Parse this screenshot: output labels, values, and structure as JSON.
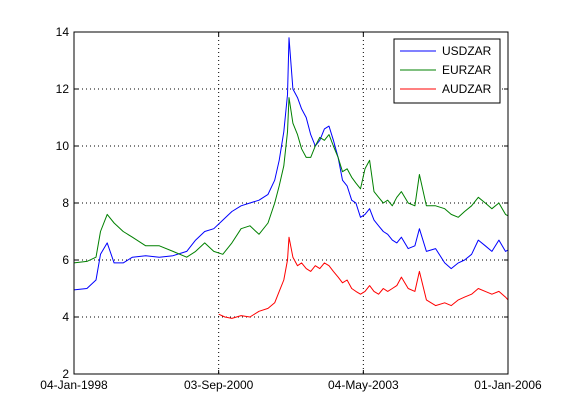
{
  "chart_data": {
    "type": "line",
    "title": "",
    "xlabel": "",
    "ylabel": "",
    "grid": true,
    "legend_position": "top-right",
    "xlim": [
      "1998-01-04",
      "2006-01-01"
    ],
    "ylim": [
      2,
      14
    ],
    "x_ticks": [
      "04-Jan-1998",
      "03-Sep-2000",
      "04-May-2003",
      "01-Jan-2006"
    ],
    "y_ticks": [
      "2",
      "4",
      "6",
      "8",
      "10",
      "12",
      "14"
    ],
    "series": [
      {
        "name": "USDZAR",
        "color": "#0000ff",
        "points": [
          [
            "1998-01-04",
            4.95
          ],
          [
            "1998-04-01",
            5.0
          ],
          [
            "1998-06-01",
            5.3
          ],
          [
            "1998-07-01",
            6.2
          ],
          [
            "1998-08-15",
            6.6
          ],
          [
            "1998-10-01",
            5.9
          ],
          [
            "1998-12-01",
            5.9
          ],
          [
            "1999-02-01",
            6.1
          ],
          [
            "1999-05-01",
            6.15
          ],
          [
            "1999-08-01",
            6.1
          ],
          [
            "1999-11-01",
            6.15
          ],
          [
            "2000-02-01",
            6.3
          ],
          [
            "2000-04-01",
            6.7
          ],
          [
            "2000-06-01",
            7.0
          ],
          [
            "2000-08-01",
            7.1
          ],
          [
            "2000-10-01",
            7.4
          ],
          [
            "2000-12-01",
            7.7
          ],
          [
            "2001-02-01",
            7.9
          ],
          [
            "2001-04-01",
            8.0
          ],
          [
            "2001-06-01",
            8.1
          ],
          [
            "2001-08-01",
            8.3
          ],
          [
            "2001-09-15",
            8.8
          ],
          [
            "2001-10-15",
            9.5
          ],
          [
            "2001-11-15",
            10.5
          ],
          [
            "2001-12-10",
            11.8
          ],
          [
            "2001-12-20",
            13.8
          ],
          [
            "2002-01-15",
            12.0
          ],
          [
            "2002-02-15",
            11.7
          ],
          [
            "2002-03-15",
            11.3
          ],
          [
            "2002-04-15",
            11.0
          ],
          [
            "2002-05-15",
            10.4
          ],
          [
            "2002-06-15",
            10.0
          ],
          [
            "2002-07-15",
            10.2
          ],
          [
            "2002-08-15",
            10.6
          ],
          [
            "2002-09-15",
            10.7
          ],
          [
            "2002-10-15",
            10.2
          ],
          [
            "2002-11-15",
            9.6
          ],
          [
            "2002-12-15",
            8.8
          ],
          [
            "2003-01-15",
            8.6
          ],
          [
            "2003-02-15",
            8.1
          ],
          [
            "2003-03-15",
            8.0
          ],
          [
            "2003-04-15",
            7.5
          ],
          [
            "2003-05-15",
            7.6
          ],
          [
            "2003-06-15",
            7.8
          ],
          [
            "2003-07-15",
            7.4
          ],
          [
            "2003-08-15",
            7.2
          ],
          [
            "2003-09-15",
            7.0
          ],
          [
            "2003-10-15",
            6.9
          ],
          [
            "2003-11-15",
            6.7
          ],
          [
            "2003-12-15",
            6.6
          ],
          [
            "2004-01-15",
            6.8
          ],
          [
            "2004-03-01",
            6.4
          ],
          [
            "2004-04-15",
            6.5
          ],
          [
            "2004-05-15",
            7.1
          ],
          [
            "2004-07-01",
            6.3
          ],
          [
            "2004-09-01",
            6.4
          ],
          [
            "2004-11-01",
            5.9
          ],
          [
            "2004-12-15",
            5.7
          ],
          [
            "2005-02-01",
            5.9
          ],
          [
            "2005-03-15",
            6.0
          ],
          [
            "2005-05-01",
            6.2
          ],
          [
            "2005-06-15",
            6.7
          ],
          [
            "2005-08-01",
            6.5
          ],
          [
            "2005-09-15",
            6.3
          ],
          [
            "2005-11-01",
            6.7
          ],
          [
            "2005-12-15",
            6.3
          ],
          [
            "2006-01-01",
            6.35
          ]
        ]
      },
      {
        "name": "EURZAR",
        "color": "#008000",
        "points": [
          [
            "1998-01-04",
            5.9
          ],
          [
            "1998-04-01",
            5.95
          ],
          [
            "1998-06-01",
            6.1
          ],
          [
            "1998-07-01",
            7.0
          ],
          [
            "1998-08-15",
            7.6
          ],
          [
            "1998-10-01",
            7.3
          ],
          [
            "1998-12-01",
            7.0
          ],
          [
            "1999-02-01",
            6.8
          ],
          [
            "1999-05-01",
            6.5
          ],
          [
            "1999-08-01",
            6.5
          ],
          [
            "1999-11-01",
            6.3
          ],
          [
            "2000-02-01",
            6.1
          ],
          [
            "2000-04-01",
            6.3
          ],
          [
            "2000-06-01",
            6.6
          ],
          [
            "2000-08-01",
            6.3
          ],
          [
            "2000-10-01",
            6.2
          ],
          [
            "2000-12-01",
            6.6
          ],
          [
            "2001-02-01",
            7.1
          ],
          [
            "2001-04-01",
            7.2
          ],
          [
            "2001-06-01",
            6.9
          ],
          [
            "2001-08-01",
            7.3
          ],
          [
            "2001-09-15",
            8.0
          ],
          [
            "2001-10-15",
            8.6
          ],
          [
            "2001-11-15",
            9.3
          ],
          [
            "2001-12-10",
            10.5
          ],
          [
            "2001-12-20",
            11.7
          ],
          [
            "2002-01-15",
            10.8
          ],
          [
            "2002-02-15",
            10.4
          ],
          [
            "2002-03-15",
            9.9
          ],
          [
            "2002-04-15",
            9.6
          ],
          [
            "2002-05-15",
            9.6
          ],
          [
            "2002-06-15",
            10.0
          ],
          [
            "2002-07-15",
            10.3
          ],
          [
            "2002-08-15",
            10.2
          ],
          [
            "2002-09-15",
            10.4
          ],
          [
            "2002-10-15",
            10.0
          ],
          [
            "2002-11-15",
            9.6
          ],
          [
            "2002-12-15",
            9.1
          ],
          [
            "2003-01-15",
            9.2
          ],
          [
            "2003-02-15",
            8.9
          ],
          [
            "2003-03-15",
            8.7
          ],
          [
            "2003-04-15",
            8.5
          ],
          [
            "2003-05-15",
            9.2
          ],
          [
            "2003-06-15",
            9.5
          ],
          [
            "2003-07-15",
            8.4
          ],
          [
            "2003-08-15",
            8.2
          ],
          [
            "2003-09-15",
            8.0
          ],
          [
            "2003-10-15",
            8.1
          ],
          [
            "2003-11-15",
            7.9
          ],
          [
            "2003-12-15",
            8.2
          ],
          [
            "2004-01-15",
            8.4
          ],
          [
            "2004-03-01",
            8.0
          ],
          [
            "2004-04-15",
            7.9
          ],
          [
            "2004-05-15",
            9.0
          ],
          [
            "2004-07-01",
            7.9
          ],
          [
            "2004-09-01",
            7.9
          ],
          [
            "2004-11-01",
            7.8
          ],
          [
            "2004-12-15",
            7.6
          ],
          [
            "2005-02-01",
            7.5
          ],
          [
            "2005-03-15",
            7.7
          ],
          [
            "2005-05-01",
            7.9
          ],
          [
            "2005-06-15",
            8.2
          ],
          [
            "2005-08-01",
            8.0
          ],
          [
            "2005-09-15",
            7.8
          ],
          [
            "2005-11-01",
            8.0
          ],
          [
            "2005-12-15",
            7.6
          ],
          [
            "2006-01-01",
            7.55
          ]
        ]
      },
      {
        "name": "AUDZAR",
        "color": "#ff0000",
        "points": [
          [
            "2000-09-03",
            4.1
          ],
          [
            "2000-10-15",
            4.0
          ],
          [
            "2000-12-01",
            3.95
          ],
          [
            "2001-02-01",
            4.05
          ],
          [
            "2001-04-01",
            4.0
          ],
          [
            "2001-06-01",
            4.2
          ],
          [
            "2001-08-01",
            4.3
          ],
          [
            "2001-09-15",
            4.5
          ],
          [
            "2001-10-15",
            4.9
          ],
          [
            "2001-11-15",
            5.3
          ],
          [
            "2001-12-10",
            6.0
          ],
          [
            "2001-12-20",
            6.8
          ],
          [
            "2002-01-15",
            6.1
          ],
          [
            "2002-02-15",
            5.8
          ],
          [
            "2002-03-15",
            5.9
          ],
          [
            "2002-04-15",
            5.7
          ],
          [
            "2002-05-15",
            5.6
          ],
          [
            "2002-06-15",
            5.8
          ],
          [
            "2002-07-15",
            5.7
          ],
          [
            "2002-08-15",
            5.9
          ],
          [
            "2002-09-15",
            5.8
          ],
          [
            "2002-10-15",
            5.6
          ],
          [
            "2002-11-15",
            5.4
          ],
          [
            "2002-12-15",
            5.2
          ],
          [
            "2003-01-15",
            5.3
          ],
          [
            "2003-02-15",
            5.0
          ],
          [
            "2003-03-15",
            4.9
          ],
          [
            "2003-04-15",
            4.8
          ],
          [
            "2003-05-15",
            4.9
          ],
          [
            "2003-06-15",
            5.1
          ],
          [
            "2003-07-15",
            4.9
          ],
          [
            "2003-08-15",
            4.8
          ],
          [
            "2003-09-15",
            5.0
          ],
          [
            "2003-10-15",
            4.9
          ],
          [
            "2003-11-15",
            5.0
          ],
          [
            "2003-12-15",
            5.1
          ],
          [
            "2004-01-15",
            5.4
          ],
          [
            "2004-03-01",
            5.0
          ],
          [
            "2004-04-15",
            4.9
          ],
          [
            "2004-05-15",
            5.6
          ],
          [
            "2004-07-01",
            4.6
          ],
          [
            "2004-09-01",
            4.4
          ],
          [
            "2004-11-01",
            4.5
          ],
          [
            "2004-12-15",
            4.4
          ],
          [
            "2005-02-01",
            4.6
          ],
          [
            "2005-03-15",
            4.7
          ],
          [
            "2005-05-01",
            4.8
          ],
          [
            "2005-06-15",
            5.0
          ],
          [
            "2005-08-01",
            4.9
          ],
          [
            "2005-09-15",
            4.8
          ],
          [
            "2005-11-01",
            4.9
          ],
          [
            "2005-12-15",
            4.7
          ],
          [
            "2006-01-01",
            4.6
          ]
        ]
      }
    ]
  }
}
